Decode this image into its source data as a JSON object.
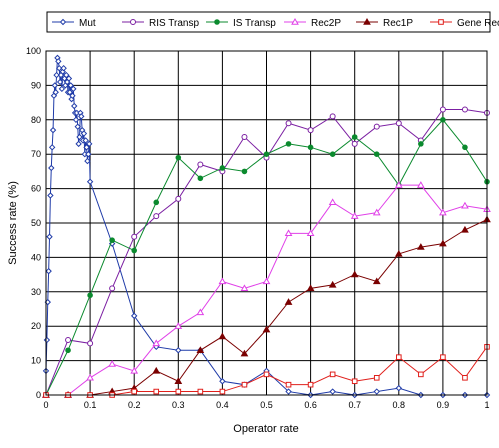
{
  "chart_data": {
    "type": "line",
    "xlabel": "Operator rate",
    "ylabel": "Success rate (%)",
    "xlim": [
      0,
      1
    ],
    "ylim": [
      0,
      100
    ],
    "xticks": [
      "0",
      "0.1",
      "0.2",
      "0.3",
      "0.4",
      "0.5",
      "0.6",
      "0.7",
      "0.8",
      "0.9",
      "1"
    ],
    "yticks": [
      "0",
      "10",
      "20",
      "30",
      "40",
      "50",
      "60",
      "70",
      "80",
      "90",
      "100"
    ],
    "grid": true,
    "legend_position": "top",
    "series": [
      {
        "name": "Mut",
        "color": "#1F3BA8",
        "marker": "diamond",
        "x": [
          0,
          0.002,
          0.004,
          0.006,
          0.008,
          0.01,
          0.012,
          0.014,
          0.016,
          0.018,
          0.02,
          0.022,
          0.024,
          0.026,
          0.028,
          0.03,
          0.032,
          0.034,
          0.036,
          0.038,
          0.04,
          0.042,
          0.044,
          0.046,
          0.048,
          0.05,
          0.052,
          0.054,
          0.056,
          0.058,
          0.06,
          0.062,
          0.064,
          0.066,
          0.068,
          0.07,
          0.072,
          0.074,
          0.076,
          0.078,
          0.08,
          0.082,
          0.084,
          0.086,
          0.088,
          0.09,
          0.092,
          0.094,
          0.096,
          0.098,
          0.1,
          0.15,
          0.2,
          0.25,
          0.3,
          0.35,
          0.4,
          0.45,
          0.5,
          0.55,
          0.6,
          0.65,
          0.7,
          0.75,
          0.8,
          0.85,
          0.9,
          0.95,
          1.0
        ],
        "values": [
          7,
          16,
          27,
          36,
          46,
          58,
          66,
          72,
          77,
          87,
          90,
          88,
          93,
          98,
          97,
          95,
          91,
          93,
          89,
          94,
          95,
          92,
          90,
          93,
          91,
          88,
          92,
          88,
          90,
          86,
          87,
          89,
          84,
          82,
          80,
          82,
          78,
          73,
          75,
          82,
          81,
          77,
          74,
          76,
          70,
          74,
          72,
          68,
          70,
          73,
          62,
          44,
          23,
          14,
          13,
          13,
          4,
          3,
          7,
          1,
          0,
          1,
          0,
          1,
          2,
          0,
          0,
          0,
          0
        ]
      },
      {
        "name": "RIS Transp",
        "color": "#7B1FA2",
        "marker": "circle",
        "x": [
          0,
          0.05,
          0.1,
          0.15,
          0.2,
          0.25,
          0.3,
          0.35,
          0.4,
          0.45,
          0.5,
          0.55,
          0.6,
          0.65,
          0.7,
          0.75,
          0.8,
          0.85,
          0.9,
          0.95,
          1.0
        ],
        "values": [
          0,
          16,
          15,
          31,
          46,
          52,
          57,
          67,
          65,
          75,
          69,
          79,
          77,
          81,
          73,
          78,
          79,
          74,
          83,
          83,
          82
        ]
      },
      {
        "name": "IS Transp",
        "color": "#0B8A2E",
        "marker": "dot",
        "x": [
          0,
          0.05,
          0.1,
          0.15,
          0.2,
          0.25,
          0.3,
          0.35,
          0.4,
          0.45,
          0.5,
          0.55,
          0.6,
          0.65,
          0.7,
          0.75,
          0.8,
          0.85,
          0.9,
          0.95,
          1.0
        ],
        "values": [
          0,
          13,
          29,
          45,
          42,
          56,
          69,
          63,
          66,
          65,
          70,
          73,
          72,
          70,
          75,
          70,
          61,
          73,
          80,
          72,
          62
        ]
      },
      {
        "name": "Rec2P",
        "color": "#E040E8",
        "marker": "triangle-open",
        "x": [
          0,
          0.05,
          0.1,
          0.15,
          0.2,
          0.25,
          0.3,
          0.35,
          0.4,
          0.45,
          0.5,
          0.55,
          0.6,
          0.65,
          0.7,
          0.75,
          0.8,
          0.85,
          0.9,
          0.95,
          1.0
        ],
        "values": [
          0,
          0,
          5,
          9,
          7,
          15,
          20,
          24,
          33,
          31,
          33,
          47,
          47,
          56,
          52,
          53,
          61,
          61,
          53,
          55,
          54
        ]
      },
      {
        "name": "Rec1P",
        "color": "#7A0000",
        "marker": "triangle-filled",
        "x": [
          0,
          0.05,
          0.1,
          0.15,
          0.2,
          0.25,
          0.3,
          0.35,
          0.4,
          0.45,
          0.5,
          0.55,
          0.6,
          0.65,
          0.7,
          0.75,
          0.8,
          0.85,
          0.9,
          0.95,
          1.0
        ],
        "values": [
          0,
          0,
          0,
          1,
          2,
          7,
          4,
          13,
          17,
          12,
          19,
          27,
          31,
          32,
          35,
          33,
          41,
          43,
          44,
          48,
          51
        ]
      },
      {
        "name": "Gene Rec",
        "color": "#E0201C",
        "marker": "square-open",
        "x": [
          0,
          0.05,
          0.1,
          0.15,
          0.2,
          0.25,
          0.3,
          0.35,
          0.4,
          0.45,
          0.5,
          0.55,
          0.6,
          0.65,
          0.7,
          0.75,
          0.8,
          0.85,
          0.9,
          0.95,
          1.0
        ],
        "values": [
          0,
          0,
          0,
          0,
          1,
          1,
          1,
          1,
          1,
          3,
          6,
          3,
          3,
          6,
          4,
          5,
          11,
          6,
          11,
          5,
          14
        ]
      }
    ]
  }
}
